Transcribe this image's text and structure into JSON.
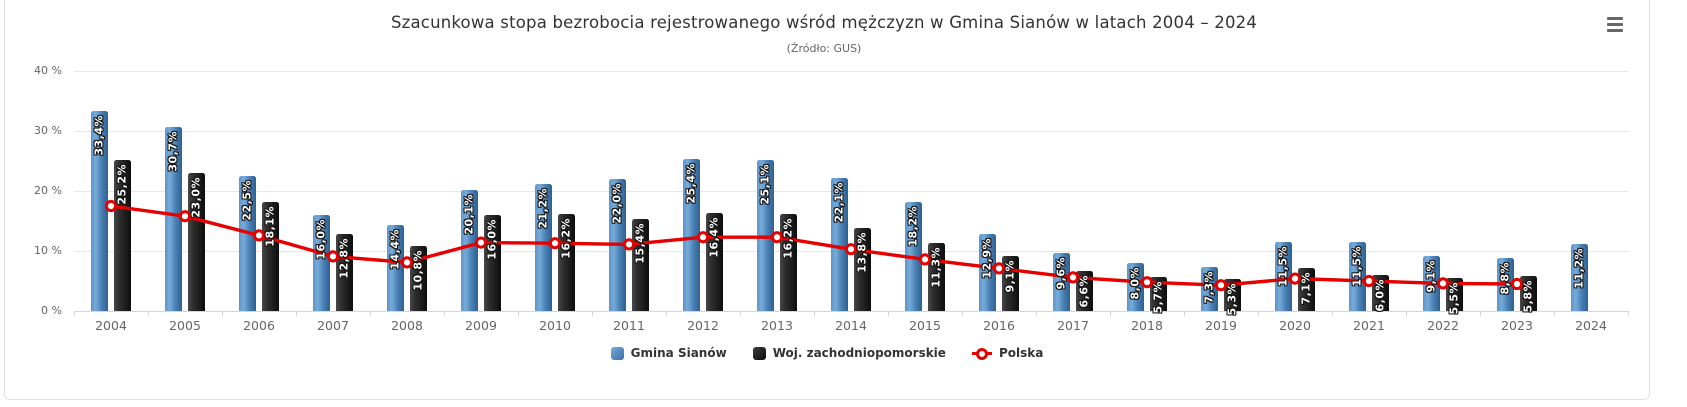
{
  "menu": {
    "icon": "hamburger-menu-icon"
  },
  "chart_data": {
    "type": "bar",
    "title": "Szacunkowa stopa bezrobocia rejestrowanego wśród mężczyzn w Gmina Sianów w latach 2004 – 2024",
    "subtitle": "(Źródło: GUS)",
    "categories": [
      "2004",
      "2005",
      "2006",
      "2007",
      "2008",
      "2009",
      "2010",
      "2011",
      "2012",
      "2013",
      "2014",
      "2015",
      "2016",
      "2017",
      "2018",
      "2019",
      "2020",
      "2021",
      "2022",
      "2023",
      "2024"
    ],
    "series": [
      {
        "name": "Gmina Sianów",
        "type": "column",
        "color": "#4a80b4",
        "values": [
          33.4,
          30.7,
          22.5,
          16.0,
          14.4,
          20.1,
          21.2,
          22.0,
          25.4,
          25.1,
          22.1,
          18.2,
          12.9,
          9.6,
          8.0,
          7.3,
          11.5,
          11.5,
          9.1,
          8.8,
          11.2
        ],
        "labels": [
          "33,4%",
          "30,7%",
          "22,5%",
          "16,0%",
          "14,4%",
          "20,1%",
          "21,2%",
          "22,0%",
          "25,4%",
          "25,1%",
          "22,1%",
          "18,2%",
          "12,9%",
          "9,6%",
          "8,0%",
          "7,3%",
          "11,5%",
          "11,5%",
          "9,1%",
          "8,8%",
          "11,2%"
        ]
      },
      {
        "name": "Woj. zachodniopomorskie",
        "type": "column",
        "color": "#1a1a1a",
        "values": [
          25.2,
          23.0,
          18.1,
          12.8,
          10.8,
          16.0,
          16.2,
          15.4,
          16.4,
          16.2,
          13.8,
          11.3,
          9.1,
          6.6,
          5.7,
          5.3,
          7.1,
          6.0,
          5.5,
          5.8,
          null
        ],
        "labels": [
          "25,2%",
          "23,0%",
          "18,1%",
          "12,8%",
          "10,8%",
          "16,0%",
          "16,2%",
          "15,4%",
          "16,4%",
          "16,2%",
          "13,8%",
          "11,3%",
          "9,1%",
          "6,6%",
          "5,7%",
          "5,3%",
          "7,1%",
          "6,0%",
          "5,5%",
          "5,8%",
          null
        ]
      },
      {
        "name": "Polska",
        "type": "line",
        "color": "#e60000",
        "values": [
          17.5,
          15.8,
          12.6,
          9.1,
          8.1,
          11.4,
          11.3,
          11.1,
          12.3,
          12.3,
          10.3,
          8.6,
          7.1,
          5.6,
          4.8,
          4.3,
          5.4,
          5.0,
          4.6,
          4.5,
          null
        ],
        "labels": []
      }
    ],
    "ylabel": "",
    "xlabel": "",
    "ylim": [
      0,
      43
    ],
    "ytick_values": [
      0,
      10,
      20,
      30,
      40
    ],
    "ytick_labels": [
      "0 %",
      "10 %",
      "20 %",
      "30 %",
      "40 %"
    ],
    "grid": true,
    "legend_position": "bottom"
  }
}
